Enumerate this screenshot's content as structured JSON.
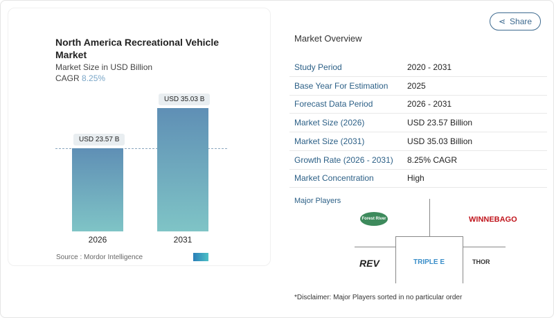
{
  "chart": {
    "title": "North America Recreational Vehicle Market",
    "subtitle": "Market Size in USD Billion",
    "cagr_label": "CAGR",
    "cagr_value": "8.25%",
    "source": "Source :  Mordor Intelligence"
  },
  "chart_data": {
    "type": "bar",
    "title": "North America Recreational Vehicle Market",
    "ylabel": "Market Size in USD Billion",
    "categories": [
      "2026",
      "2031"
    ],
    "values": [
      23.57,
      35.03
    ],
    "data_labels": [
      "USD 23.57 B",
      "USD 35.03 B"
    ],
    "grid": false,
    "colors": [
      "#5f8fb5",
      "#7fc4c6"
    ]
  },
  "share_label": "Share",
  "overview": {
    "title": "Market Overview",
    "rows": [
      {
        "k": "Study Period",
        "v": "2020 - 2031"
      },
      {
        "k": "Base Year For Estimation",
        "v": "2025"
      },
      {
        "k": "Forecast Data Period",
        "v": "2026 - 2031"
      },
      {
        "k": "Market Size (2026)",
        "v": "USD 23.57 Billion"
      },
      {
        "k": "Market Size (2031)",
        "v": "USD 35.03 Billion"
      },
      {
        "k": "Growth Rate (2026 - 2031)",
        "v": "8.25% CAGR"
      },
      {
        "k": "Market Concentration",
        "v": "High"
      }
    ]
  },
  "players": {
    "title": "Major Players",
    "logos": [
      "Forest River",
      "WINNEBAGO",
      "REV",
      "TRIPLE E",
      "THOR"
    ]
  },
  "disclaimer": "*Disclaimer: Major Players sorted in no particular order"
}
